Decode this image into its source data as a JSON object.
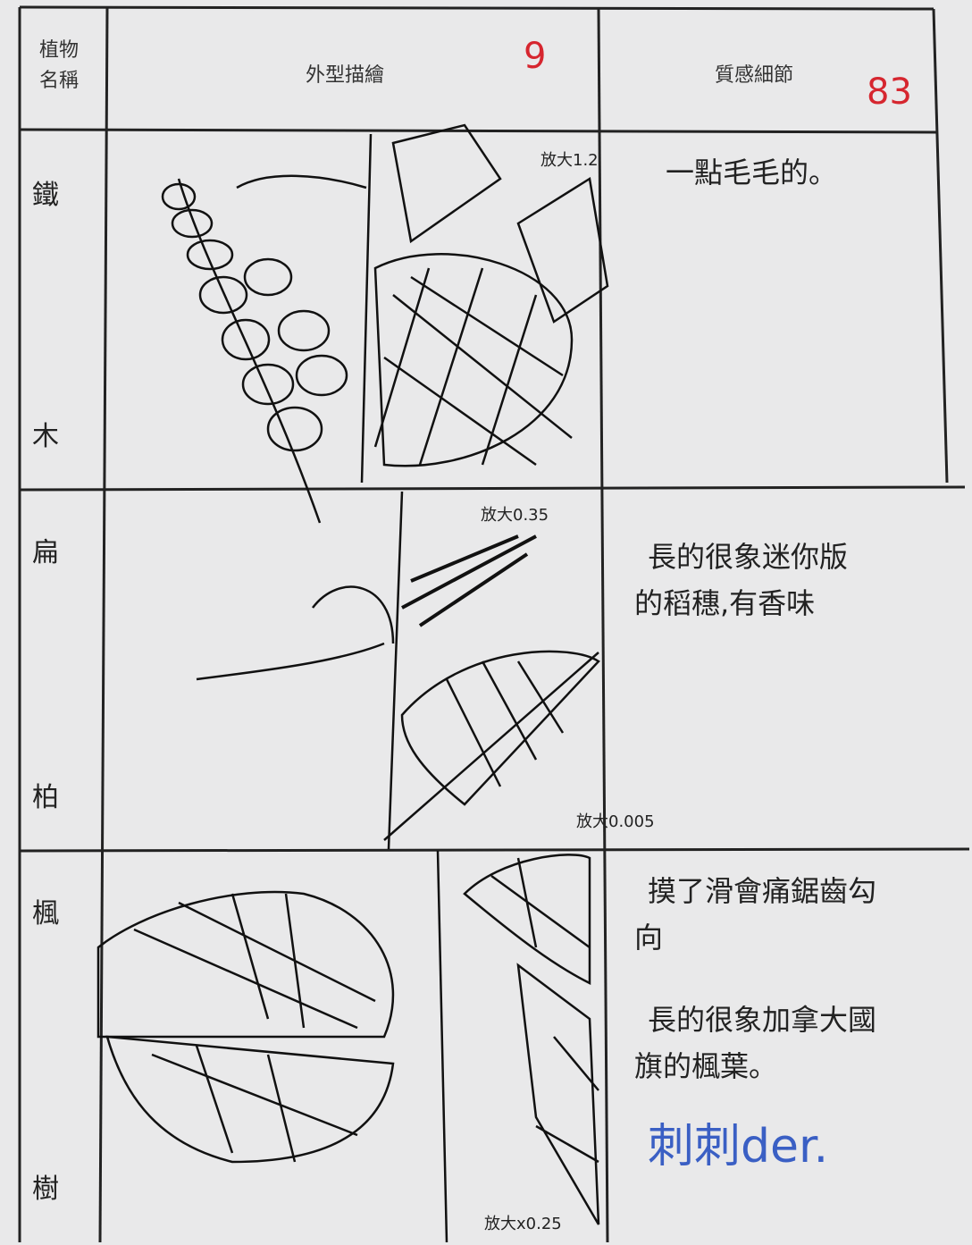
{
  "header": {
    "name": [
      "植物",
      "名稱"
    ],
    "shape": "外型描繪",
    "shape_score": "9",
    "texture": "質感細節",
    "texture_score": "83"
  },
  "rows": [
    {
      "name": [
        "鐵",
        "木"
      ],
      "zoom_labels": [
        "放大1.2"
      ],
      "texture": [
        "一點毛毛的。"
      ]
    },
    {
      "name": [
        "扁",
        "柏"
      ],
      "zoom_labels": [
        "放大0.35",
        "放大0.005"
      ],
      "texture": [
        "長的很象迷你版",
        "的稻穗,有香味"
      ]
    },
    {
      "name": [
        "楓",
        "樹"
      ],
      "zoom_labels": [
        "放大x0.25"
      ],
      "texture": [
        "摸了滑會痛鋸齒勾",
        "向",
        "長的很象加拿大國",
        "旗的楓葉。",
        "刺刺der."
      ]
    }
  ]
}
